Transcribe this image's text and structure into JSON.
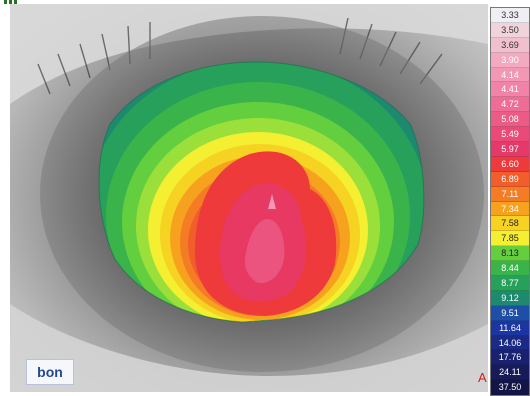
{
  "scale": {
    "values": [
      "3.33",
      "3.50",
      "3.69",
      "3.90",
      "4.14",
      "4.41",
      "4.72",
      "5.08",
      "5.49",
      "5.97",
      "6.60",
      "6.89",
      "7.11",
      "7.34",
      "7.58",
      "7.85",
      "8.13",
      "8.44",
      "8.77",
      "9.12",
      "9.51",
      "11.64",
      "14.06",
      "17.76",
      "24.11",
      "37.50"
    ],
    "colors": [
      "#efeff5",
      "#f1d3dc",
      "#f0c0cd",
      "#f3aac0",
      "#f297b4",
      "#f183a8",
      "#ee6d96",
      "#eb5b86",
      "#e94a77",
      "#e53a69",
      "#ee3a3a",
      "#f15d2b",
      "#f47c25",
      "#f7a21f",
      "#f6d323",
      "#f4ef30",
      "#63cf3f",
      "#3ab44a",
      "#27a05b",
      "#1d8a70",
      "#1d4fa6",
      "#1b36a0",
      "#1b2a87",
      "#1a2270",
      "#171c58",
      "#121545"
    ],
    "text_colors": [
      "#333",
      "#333",
      "#333",
      "#fff",
      "#fff",
      "#fff",
      "#fff",
      "#fff",
      "#fff",
      "#fff",
      "#fff",
      "#fff",
      "#fff",
      "#fff",
      "#222",
      "#222",
      "#222",
      "#fff",
      "#fff",
      "#fff",
      "#fff",
      "#fff",
      "#fff",
      "#fff",
      "#fff",
      "#fff"
    ]
  },
  "logo": {
    "text": "bon"
  },
  "corner_letter": "A"
}
